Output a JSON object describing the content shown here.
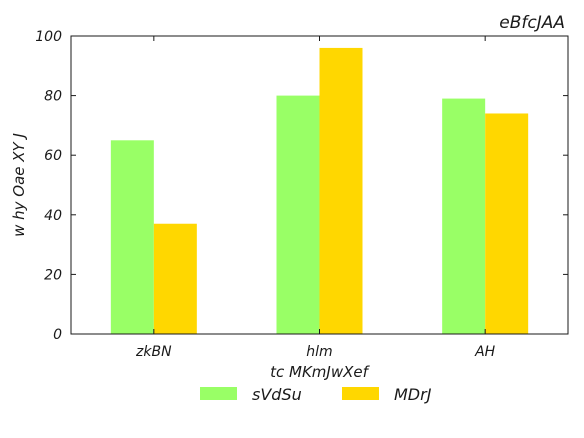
{
  "chart_data": {
    "type": "bar",
    "title": "eBfcJAA",
    "xlabel": "tc MKmJwXef",
    "ylabel": "w hy Oae XY J",
    "categories": [
      "zkBN",
      "hlm",
      "AH"
    ],
    "series": [
      {
        "name": "sVdSu",
        "values": [
          65,
          80,
          79
        ],
        "color": "#99ff66"
      },
      {
        "name": "MDrJ",
        "values": [
          37,
          96,
          74
        ],
        "color": "#ffd700"
      }
    ],
    "ylim": [
      0,
      100
    ],
    "yticks": [
      "0",
      "20",
      "40",
      "60",
      "80",
      "100"
    ],
    "ytick_values": [
      0,
      20,
      40,
      60,
      80,
      100
    ],
    "grid": false,
    "legend_position": "bottom-center"
  }
}
